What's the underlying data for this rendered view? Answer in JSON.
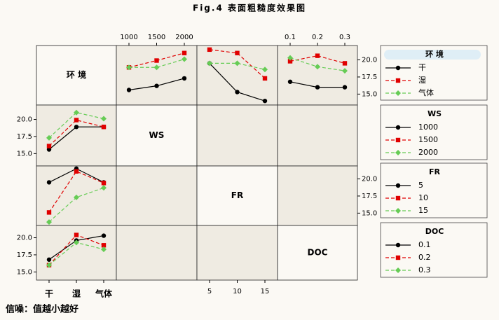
{
  "chart_data": {
    "type": "interaction",
    "title": "Fig.4 表面粗糙度效果图",
    "note": "信噪：值越小越好",
    "factors": [
      {
        "name": "环 境",
        "levels": [
          "干",
          "湿",
          "气体"
        ]
      },
      {
        "name": "WS",
        "levels": [
          1000,
          1500,
          2000
        ]
      },
      {
        "name": "FR",
        "levels": [
          5,
          10,
          15
        ]
      },
      {
        "name": "DOC",
        "levels": [
          0.1,
          0.2,
          0.3
        ]
      }
    ],
    "series_colors": [
      "#000000",
      "#e00000",
      "#66cc55"
    ],
    "series_markers": [
      "circle",
      "square",
      "diamond"
    ],
    "series_dashes": [
      "solid",
      "dashed",
      "dashed"
    ],
    "ylim": [
      13.4,
      22.1
    ],
    "yticks": [
      {
        "value": 15,
        "label": "15.0"
      },
      {
        "value": 17.5,
        "label": "17.5"
      },
      {
        "value": 20,
        "label": "20.0"
      }
    ],
    "panels": [
      {
        "series_factor": 0,
        "x_factor": 1,
        "values": [
          [
            15.6,
            16.2,
            17.3
          ],
          [
            18.9,
            19.9,
            21.0
          ],
          [
            18.9,
            18.9,
            20.1
          ]
        ]
      },
      {
        "series_factor": 0,
        "x_factor": 2,
        "values": [
          [
            19.5,
            15.3,
            14.0
          ],
          [
            21.5,
            21.0,
            17.3
          ],
          [
            19.5,
            19.5,
            18.6
          ]
        ]
      },
      {
        "series_factor": 0,
        "x_factor": 3,
        "values": [
          [
            16.8,
            16.0,
            16.0
          ],
          [
            19.8,
            20.6,
            19.5
          ],
          [
            20.3,
            19.0,
            18.4
          ]
        ]
      },
      {
        "series_factor": 1,
        "x_factor": 0,
        "values": [
          [
            15.6,
            18.9,
            18.9
          ],
          [
            16.1,
            19.9,
            18.9
          ],
          [
            17.3,
            21.0,
            20.1
          ]
        ]
      },
      {
        "series_factor": 2,
        "x_factor": 0,
        "values": [
          [
            19.5,
            21.5,
            19.5
          ],
          [
            15.1,
            21.1,
            19.4
          ],
          [
            13.7,
            17.3,
            18.7
          ]
        ]
      },
      {
        "series_factor": 3,
        "x_factor": 0,
        "values": [
          [
            16.8,
            19.6,
            20.3
          ],
          [
            16.0,
            20.4,
            18.9
          ],
          [
            16.0,
            19.3,
            18.3
          ]
        ]
      }
    ]
  }
}
